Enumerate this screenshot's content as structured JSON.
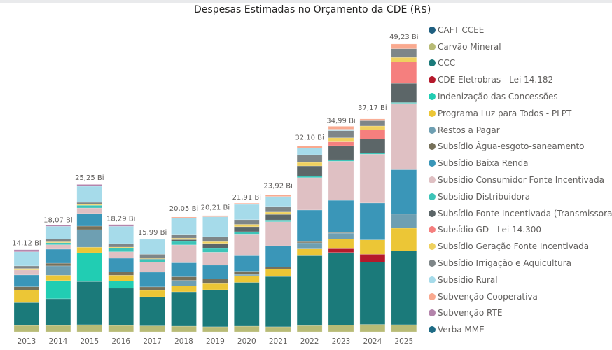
{
  "chart_data": {
    "type": "bar",
    "stacked": true,
    "title": "Despesas Estimadas no Orçamento da CDE (R$)",
    "xlabel": "",
    "ylabel": "",
    "unit_suffix": " Bi",
    "ylim": [
      0,
      50
    ],
    "legend_position": "right",
    "grid": false,
    "categories": [
      "2013",
      "2014",
      "2015",
      "2016",
      "2017",
      "2018",
      "2019",
      "2020",
      "2021",
      "2022",
      "2023",
      "2024",
      "2025"
    ],
    "total_labels": [
      "14,12 Bi",
      "18,07 Bi",
      "25,25 Bi",
      "18,29 Bi",
      "15,99 Bi",
      "20,05 Bi",
      "20,21 Bi",
      "21,91 Bi",
      "23,92 Bi",
      "32,10 Bi",
      "34,99 Bi",
      "37,17 Bi",
      "49,23 Bi"
    ],
    "totals": [
      14.12,
      18.07,
      25.25,
      18.29,
      15.99,
      20.05,
      20.21,
      21.91,
      23.92,
      32.1,
      34.99,
      37.17,
      49.23
    ],
    "series": [
      {
        "name": "CAFT CCEE",
        "color": "#1f5f80",
        "values": [
          0,
          0,
          0,
          0,
          0,
          0,
          0,
          0,
          0,
          0,
          0,
          0,
          0
        ]
      },
      {
        "name": "Carvão Mineral",
        "color": "#b8bb76",
        "values": [
          1.07,
          1.07,
          1.2,
          1.07,
          1.0,
          0.95,
          0.85,
          0.95,
          0.85,
          1.05,
          1.15,
          1.25,
          1.2
        ]
      },
      {
        "name": "CCC",
        "color": "#1b7a7a",
        "values": [
          3.9,
          4.55,
          7.35,
          6.35,
          4.95,
          5.85,
          6.3,
          7.45,
          8.55,
          11.9,
          12.35,
          10.6,
          12.6
        ]
      },
      {
        "name": "CDE Eletrobras - Lei 14.182",
        "color": "#b5192b",
        "values": [
          0,
          0,
          0,
          0,
          0,
          0,
          0,
          0,
          0,
          0,
          0.65,
          1.35,
          0
        ]
      },
      {
        "name": "Indenização das Concessões",
        "color": "#21cdb3",
        "values": [
          0,
          3.1,
          4.9,
          1.2,
          0,
          0,
          0,
          0,
          0,
          0,
          0,
          0,
          0
        ]
      },
      {
        "name": "Programa Luz para Todos - PLPT",
        "color": "#ecc636",
        "values": [
          2.1,
          0.9,
          0.95,
          1.0,
          1.1,
          1.0,
          1.05,
          1.15,
          1.3,
          1.15,
          1.65,
          2.45,
          3.85
        ]
      },
      {
        "name": "Restos a Pagar",
        "color": "#6e9fb2",
        "values": [
          0,
          1.6,
          3.0,
          0,
          0,
          0.95,
          0,
          0.2,
          0,
          1.05,
          1.0,
          0,
          2.4
        ]
      },
      {
        "name": "Subsídio Água-esgoto-saneamento",
        "color": "#76705a",
        "values": [
          0.6,
          0.45,
          0.6,
          0.6,
          0.6,
          0.6,
          0.8,
          0.55,
          0.35,
          0.2,
          0.1,
          0,
          0
        ]
      },
      {
        "name": "Subsídio Baixa Renda",
        "color": "#3a96b8",
        "values": [
          2.0,
          2.4,
          2.15,
          2.3,
          2.5,
          2.4,
          2.35,
          2.65,
          3.6,
          5.4,
          5.5,
          6.3,
          7.55
        ]
      },
      {
        "name": "Subsídio Consumidor Fonte Incentivada",
        "color": "#dfc0c3",
        "values": [
          0.85,
          0.75,
          0.95,
          1.1,
          1.7,
          3.05,
          2.2,
          3.7,
          4.1,
          5.5,
          6.65,
          8.3,
          11.3
        ]
      },
      {
        "name": "Subsídio Distribuidora",
        "color": "#3dc4b8",
        "values": [
          0,
          0.35,
          0.45,
          0.6,
          0.5,
          0.6,
          0.65,
          0.4,
          0.3,
          0.3,
          0.25,
          0.2,
          0.15
        ]
      },
      {
        "name": "Subsídio Fonte Incentivada (Transmissoras)",
        "color": "#5c6668",
        "values": [
          0,
          0,
          0,
          0,
          0.1,
          0.3,
          0.85,
          0.85,
          0.95,
          1.7,
          2.4,
          2.4,
          3.25
        ]
      },
      {
        "name": "Subsídio GD - Lei 14.300",
        "color": "#f57f7e",
        "values": [
          0,
          0,
          0,
          0,
          0,
          0,
          0,
          0,
          0,
          0,
          0.65,
          1.55,
          3.65
        ]
      },
      {
        "name": "Subsídio Geração Fonte Incentivada",
        "color": "#efd15f",
        "values": [
          0.25,
          0.15,
          0.15,
          0.2,
          0.15,
          0.25,
          0.3,
          0.4,
          0.4,
          0.6,
          0.7,
          0.65,
          0.75
        ]
      },
      {
        "name": "Subsídio Irrigação e Aquicultura",
        "color": "#7e8688",
        "values": [
          0.45,
          0.5,
          0.35,
          0.6,
          0.6,
          0.65,
          0.85,
          0.8,
          0.95,
          1.3,
          1.2,
          0.9,
          1.5
        ]
      },
      {
        "name": "Subsídio Rural",
        "color": "#a6dbea",
        "values": [
          2.4,
          2.15,
          2.75,
          2.95,
          2.55,
          2.8,
          3.4,
          2.6,
          1.7,
          1.15,
          0.25,
          0,
          0
        ]
      },
      {
        "name": "Subvenção Cooperativa",
        "color": "#f9a98f",
        "values": [
          0,
          0,
          0,
          0,
          0,
          0.15,
          0.2,
          0.2,
          0.3,
          0.4,
          0.5,
          0.3,
          0.8
        ]
      },
      {
        "name": "Subvenção RTE",
        "color": "#b484ab",
        "values": [
          0.35,
          0.25,
          0.3,
          0.3,
          0,
          0,
          0,
          0,
          0,
          0,
          0,
          0,
          0
        ]
      },
      {
        "name": "Verba MME",
        "color": "#1e6b85",
        "values": [
          0,
          0,
          0,
          0,
          0,
          0,
          0,
          0,
          0,
          0,
          0,
          0,
          0
        ]
      }
    ]
  }
}
